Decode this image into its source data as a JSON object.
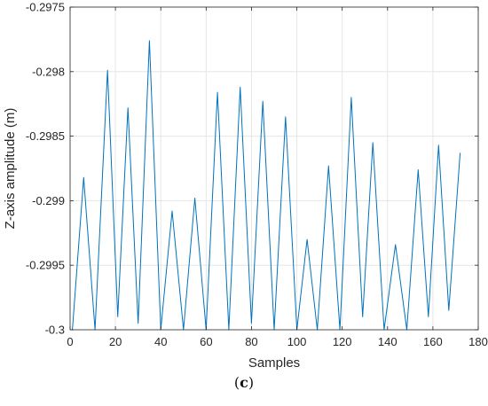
{
  "caption_open": "(",
  "caption_letter": "c",
  "caption_close": ")",
  "chart_data": {
    "type": "line",
    "xlabel": "Samples",
    "ylabel": "Z-axis amplitude (m)",
    "xlim": [
      0,
      180
    ],
    "ylim": [
      -0.3,
      -0.2975
    ],
    "xticks": [
      0,
      20,
      40,
      60,
      80,
      100,
      120,
      140,
      160,
      180
    ],
    "xtick_labels": [
      "0",
      "20",
      "40",
      "60",
      "80",
      "100",
      "120",
      "140",
      "160",
      "180"
    ],
    "yticks": [
      -0.3,
      -0.2995,
      -0.299,
      -0.2985,
      -0.298,
      -0.2975
    ],
    "ytick_labels": [
      "-0.3",
      "-0.2995",
      "-0.299",
      "-0.2985",
      "-0.298",
      "-0.2975"
    ],
    "grid": true,
    "series": [
      {
        "color": "#0072BD",
        "x": [
          1,
          6,
          11,
          16.5,
          21,
          25.5,
          30,
          35,
          40,
          45,
          50,
          55,
          60,
          65,
          70,
          75,
          80,
          85,
          90,
          95,
          100,
          104.5,
          109,
          114,
          119,
          124,
          129,
          133.5,
          138.5,
          143.5,
          148.5,
          153.5,
          158,
          162.5,
          167,
          172
        ],
        "y": [
          -0.3,
          -0.29882,
          -0.3,
          -0.29799,
          -0.2999,
          -0.29828,
          -0.29995,
          -0.29776,
          -0.3,
          -0.29908,
          -0.3,
          -0.29898,
          -0.3,
          -0.29816,
          -0.3,
          -0.29812,
          -0.29995,
          -0.29823,
          -0.3,
          -0.29835,
          -0.3,
          -0.2993,
          -0.3,
          -0.29873,
          -0.3,
          -0.2982,
          -0.2999,
          -0.29855,
          -0.3,
          -0.29934,
          -0.3,
          -0.29876,
          -0.2999,
          -0.29857,
          -0.29985,
          -0.29863
        ]
      }
    ]
  }
}
